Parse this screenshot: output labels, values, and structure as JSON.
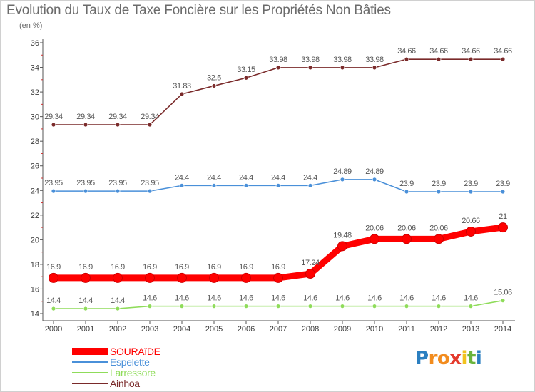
{
  "page": {
    "title": "Evolution du Taux de Taxe Foncière sur les Propriétés Non Bâties",
    "subtitle": "(en %)"
  },
  "brand": {
    "letters": [
      "P",
      "r",
      "o",
      "x",
      "i",
      "t",
      "i"
    ],
    "colors": [
      "#2b7fc0",
      "#f28c1e",
      "#f28c1e",
      "#e43a2c",
      "#f2c21e",
      "#6ab43c",
      "#2b7fc0"
    ]
  },
  "chart_data": {
    "type": "line",
    "title": "Evolution du Taux de Taxe Foncière sur les Propriétés Non Bâties",
    "ylabel": "(en %)",
    "xlabel": "",
    "x": [
      "2000",
      "2001",
      "2002",
      "2003",
      "2004",
      "2005",
      "2006",
      "2007",
      "2008",
      "2009",
      "2010",
      "2011",
      "2012",
      "2013",
      "2014"
    ],
    "ylim": [
      14,
      36
    ],
    "yticks": [
      "14",
      "16",
      "18",
      "20",
      "22",
      "24",
      "26",
      "28",
      "30",
      "32",
      "34",
      "36"
    ],
    "grid": "none",
    "legend": "bottom-left",
    "series": [
      {
        "name": "SOURAïDE",
        "color": "#ff0000",
        "emphasis": true,
        "values": [
          16.9,
          16.9,
          16.9,
          16.9,
          16.9,
          16.9,
          16.9,
          16.9,
          17.24,
          19.48,
          20.06,
          20.06,
          20.06,
          20.66,
          21
        ],
        "labels": [
          "16.9",
          "16.9",
          "16.9",
          "16.9",
          "16.9",
          "16.9",
          "16.9",
          "16.9",
          "17.24",
          "19.48",
          "20.06",
          "20.06",
          "20.06",
          "20.66",
          "21"
        ]
      },
      {
        "name": "Espelette",
        "color": "#4a90d9",
        "emphasis": false,
        "values": [
          23.95,
          23.95,
          23.95,
          23.95,
          24.4,
          24.4,
          24.4,
          24.4,
          24.4,
          24.89,
          24.89,
          23.9,
          23.9,
          23.9,
          23.9
        ],
        "labels": [
          "23.95",
          "23.95",
          "23.95",
          "23.95",
          "24.4",
          "24.4",
          "24.4",
          "24.4",
          "24.4",
          "24.89",
          "24.89",
          "23.9",
          "23.9",
          "23.9",
          "23.9"
        ]
      },
      {
        "name": "Larressore",
        "color": "#8fdc5a",
        "emphasis": false,
        "values": [
          14.4,
          14.4,
          14.4,
          14.6,
          14.6,
          14.6,
          14.6,
          14.6,
          14.6,
          14.6,
          14.6,
          14.6,
          14.6,
          14.6,
          15.06
        ],
        "labels": [
          "14.4",
          "14.4",
          "14.4",
          "14.6",
          "14.6",
          "14.6",
          "14.6",
          "14.6",
          "14.6",
          "14.6",
          "14.6",
          "14.6",
          "14.6",
          "14.6",
          "15.06"
        ]
      },
      {
        "name": "Ainhoa",
        "color": "#7a2a2a",
        "emphasis": false,
        "values": [
          29.34,
          29.34,
          29.34,
          29.34,
          31.83,
          32.5,
          33.15,
          33.98,
          33.98,
          33.98,
          33.98,
          34.66,
          34.66,
          34.66,
          34.66
        ],
        "labels": [
          "29.34",
          "29.34",
          "29.34",
          "29.34",
          "31.83",
          "32.5",
          "33.15",
          "33.98",
          "33.98",
          "33.98",
          "33.98",
          "34.66",
          "34.66",
          "34.66",
          "34.66"
        ]
      }
    ]
  }
}
